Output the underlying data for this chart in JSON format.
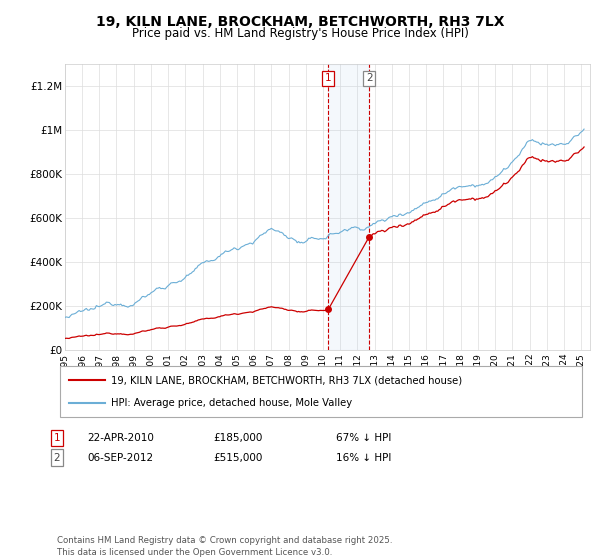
{
  "title": "19, KILN LANE, BROCKHAM, BETCHWORTH, RH3 7LX",
  "subtitle": "Price paid vs. HM Land Registry's House Price Index (HPI)",
  "ylim": [
    0,
    1300000
  ],
  "xlim_start": 1995.0,
  "xlim_end": 2025.5,
  "legend_line1": "19, KILN LANE, BROCKHAM, BETCHWORTH, RH3 7LX (detached house)",
  "legend_line2": "HPI: Average price, detached house, Mole Valley",
  "annotation1_date": "22-APR-2010",
  "annotation1_price": "£185,000",
  "annotation1_hpi": "67% ↓ HPI",
  "annotation2_date": "06-SEP-2012",
  "annotation2_price": "£515,000",
  "annotation2_hpi": "16% ↓ HPI",
  "sale1_x": 2010.31,
  "sale1_y": 185000,
  "sale2_x": 2012.68,
  "sale2_y": 515000,
  "hpi_color": "#6baed6",
  "price_color": "#cc0000",
  "footer": "Contains HM Land Registry data © Crown copyright and database right 2025.\nThis data is licensed under the Open Government Licence v3.0.",
  "background_color": "#ffffff",
  "grid_color": "#dddddd"
}
